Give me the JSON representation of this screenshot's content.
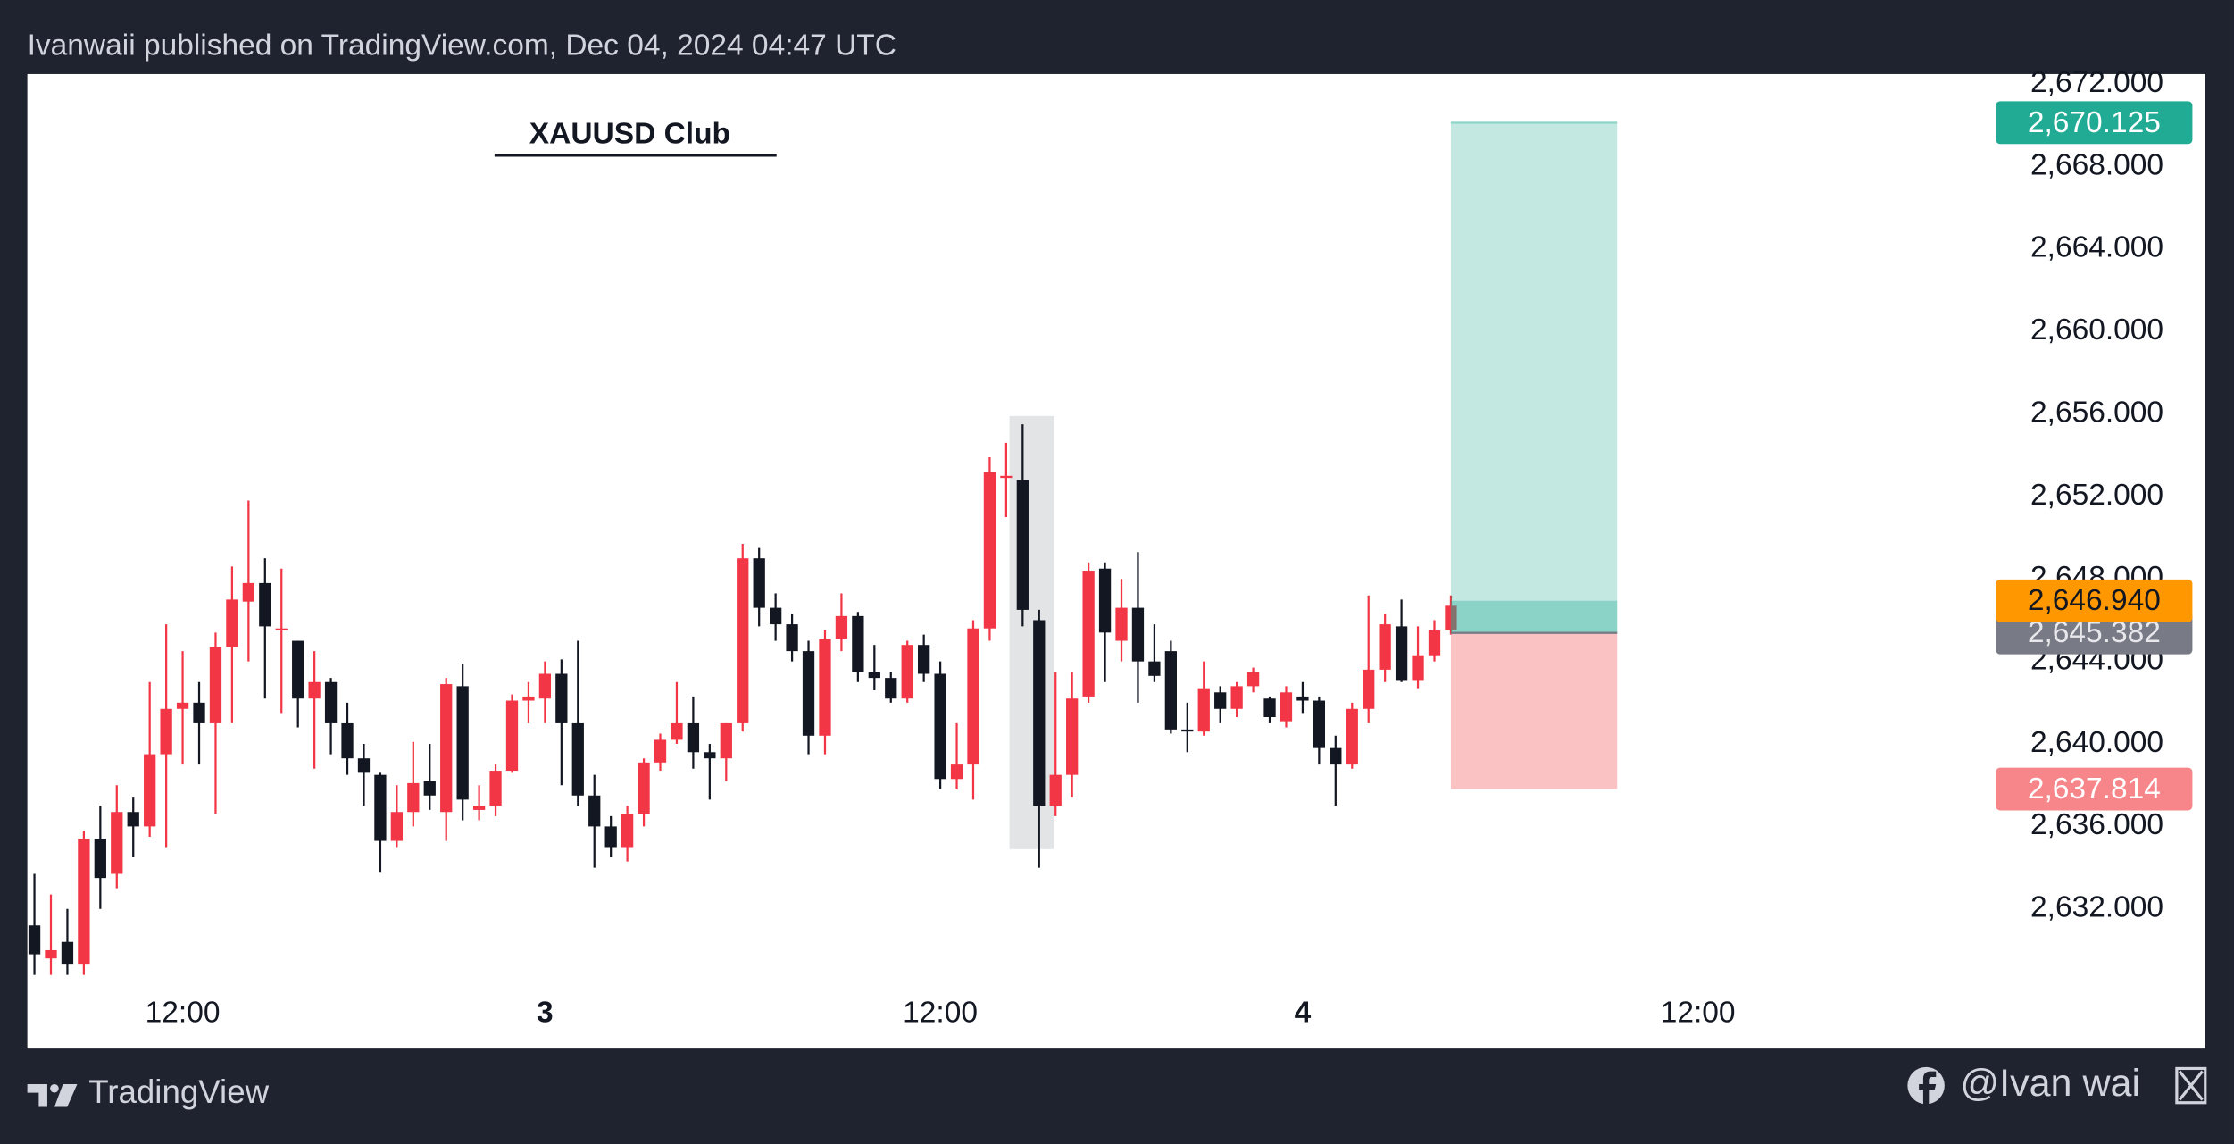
{
  "header": {
    "text": "Ivanwaii published on TradingView.com, Dec 04, 2024 04:47 UTC"
  },
  "footer": {
    "brand": "TradingView",
    "author": "@Ivan wai"
  },
  "chart_data": {
    "type": "candlestick",
    "annotation": "XAUUSD Club",
    "up_color": "#f23645",
    "down_color": "#131722",
    "categories": [
      null,
      null,
      null,
      null,
      null,
      null,
      null,
      null,
      null,
      null,
      null,
      null,
      null,
      null,
      null,
      null,
      null,
      null,
      null,
      null,
      null,
      null,
      null,
      null,
      null,
      null,
      null,
      null,
      null,
      null,
      null,
      null,
      null,
      null,
      null,
      null,
      null,
      null,
      null,
      null,
      null,
      null,
      null,
      null,
      null,
      null,
      null,
      null,
      null,
      null,
      null,
      null,
      null,
      null,
      null,
      null,
      null,
      null,
      null,
      null,
      null,
      null,
      null,
      null,
      null,
      null,
      null,
      null,
      null,
      null,
      null,
      null,
      null,
      null,
      null,
      null,
      null,
      null,
      null,
      null,
      null,
      null,
      null,
      null,
      null,
      null,
      null
    ],
    "open": [
      2631.2,
      2629.6,
      2630.4,
      2629.3,
      2635.4,
      2633.7,
      2636.7,
      2636,
      2639.5,
      2641.7,
      2642,
      2641,
      2644.7,
      2646.9,
      2647.8,
      2645.6,
      2645,
      2642.2,
      2643,
      2641,
      2639.3,
      2638.5,
      2635.3,
      2636.7,
      2638.2,
      2636.7,
      2642.8,
      2636.8,
      2637,
      2638.7,
      2642.1,
      2642.2,
      2643.4,
      2641,
      2637.5,
      2636,
      2635,
      2636.6,
      2639.1,
      2640.2,
      2641,
      2639.6,
      2639.3,
      2641,
      2649,
      2646.6,
      2645.8,
      2644.5,
      2640.4,
      2645.1,
      2646.2,
      2643.5,
      2643.2,
      2642.2,
      2644.8,
      2643.4,
      2638.3,
      2639,
      2645.6,
      2652.9,
      2652.8,
      2646,
      2637,
      2638.5,
      2642.3,
      2648.5,
      2645,
      2646.6,
      2644,
      2644.5,
      2640.7,
      2640.6,
      2642.5,
      2641.7,
      2642.8,
      2642.2,
      2641.1,
      2642.3,
      2642.1,
      2639.8,
      2639,
      2641.7,
      2643.6,
      2645.7,
      2643.1,
      2644.3,
      2645.5
    ],
    "high": [
      2633.7,
      2632.7,
      2632,
      2635.8,
      2637,
      2638,
      2637.4,
      2643,
      2645.8,
      2644.5,
      2643,
      2645.4,
      2648.6,
      2651.8,
      2649,
      2648.5,
      2645,
      2644.5,
      2643.2,
      2642,
      2640,
      2638.6,
      2638,
      2640.1,
      2640,
      2643.2,
      2643.9,
      2638,
      2639,
      2642.4,
      2643,
      2644,
      2644.1,
      2645,
      2638.5,
      2636.5,
      2637,
      2639.3,
      2640.5,
      2643,
      2642.3,
      2640,
      2641,
      2649.7,
      2649.5,
      2647.3,
      2646.3,
      2645,
      2645.5,
      2647.3,
      2646.4,
      2644.8,
      2643.5,
      2645,
      2645.3,
      2644,
      2641,
      2646,
      2653.9,
      2654.6,
      2655.5,
      2646.5,
      2643.5,
      2643.5,
      2648.8,
      2648.8,
      2648,
      2649.3,
      2645.8,
      2645,
      2642,
      2644,
      2642.8,
      2643,
      2643.7,
      2642.3,
      2642.8,
      2643,
      2642.3,
      2640.4,
      2642,
      2647.2,
      2646.3,
      2647,
      2645.7,
      2646,
      2647.2
    ],
    "low": [
      2628.8,
      2628.8,
      2628.8,
      2628.8,
      2632,
      2633,
      2634.5,
      2635.5,
      2635,
      2639,
      2639,
      2636.6,
      2641,
      2644,
      2642.2,
      2641.5,
      2640.8,
      2638.8,
      2639.5,
      2638.5,
      2637,
      2633.8,
      2635,
      2636,
      2636.8,
      2635.3,
      2636.3,
      2636.3,
      2636.5,
      2638.6,
      2641,
      2641,
      2638,
      2637,
      2634,
      2634.5,
      2634.3,
      2636,
      2638.7,
      2640,
      2638.8,
      2637.3,
      2638.2,
      2640.6,
      2645.7,
      2645,
      2644,
      2639.5,
      2639.5,
      2644.5,
      2643,
      2642.6,
      2642,
      2642,
      2643,
      2637.8,
      2637.8,
      2637.3,
      2645,
      2651,
      2645.7,
      2634,
      2636.5,
      2637.4,
      2642,
      2643,
      2644,
      2642,
      2643,
      2640.5,
      2639.6,
      2640.4,
      2641,
      2641.3,
      2642.5,
      2641,
      2640.8,
      2641.5,
      2639,
      2637,
      2638.8,
      2641,
      2643,
      2643,
      2642.7,
      2644,
      2645.3
    ],
    "close": [
      2629.8,
      2630,
      2629.3,
      2635.4,
      2633.5,
      2636.7,
      2636,
      2639.5,
      2641.7,
      2642,
      2641,
      2644.7,
      2647,
      2647.8,
      2645.7,
      2645.6,
      2642.2,
      2643,
      2641,
      2639.3,
      2638.6,
      2635.3,
      2636.7,
      2638.1,
      2637.5,
      2642.9,
      2637.3,
      2637,
      2638.7,
      2642.1,
      2642.3,
      2643.4,
      2641,
      2637.5,
      2636,
      2635,
      2636.6,
      2639.1,
      2640.2,
      2641,
      2639.6,
      2639.3,
      2641,
      2649,
      2646.6,
      2645.8,
      2644.5,
      2640.4,
      2645.1,
      2646.2,
      2643.5,
      2643.2,
      2642.2,
      2644.8,
      2643.4,
      2638.3,
      2639,
      2645.6,
      2653.2,
      2653,
      2646.5,
      2637,
      2638.5,
      2642.2,
      2648.4,
      2645.4,
      2646.6,
      2644,
      2643.3,
      2640.7,
      2640.6,
      2642.7,
      2641.7,
      2642.8,
      2643.5,
      2641.3,
      2642.5,
      2642.1,
      2639.8,
      2639,
      2641.7,
      2643.6,
      2645.8,
      2643.1,
      2644.3,
      2645.5,
      2646.7
    ],
    "xlim": [
      -0.43,
      131.8
    ],
    "xticks": [
      {
        "value": 9,
        "label": "12:00"
      },
      {
        "value": 31,
        "label": "3"
      },
      {
        "value": 55,
        "label": "12:00"
      },
      {
        "value": 77,
        "label": "4"
      },
      {
        "value": 101,
        "label": "12:00"
      }
    ],
    "ylim": [
      2625.23,
      2672.48
    ],
    "yticks": [
      {
        "value": 2632,
        "label": "2,632.000"
      },
      {
        "value": 2636,
        "label": "2,636.000"
      },
      {
        "value": 2640,
        "label": "2,640.000"
      },
      {
        "value": 2644,
        "label": "2,644.000"
      },
      {
        "value": 2648,
        "label": "2,648.000"
      },
      {
        "value": 2652,
        "label": "2,652.000"
      },
      {
        "value": 2656,
        "label": "2,656.000"
      },
      {
        "value": 2660,
        "label": "2,660.000"
      },
      {
        "value": 2664,
        "label": "2,664.000"
      },
      {
        "value": 2668,
        "label": "2,668.000"
      },
      {
        "value": 2672,
        "label": "2,672.000"
      }
    ],
    "highlight": {
      "x": [
        59.2,
        61.9
      ],
      "y": [
        2634.9,
        2655.9
      ],
      "color": "#e3e4e6"
    },
    "position": {
      "x": [
        86,
        96.1
      ],
      "target": {
        "value": 2670.125,
        "label": "2,670.125",
        "color": "#22ab94"
      },
      "entry": {
        "value": 2645.382,
        "label": "2,645.382",
        "color": "#787b86"
      },
      "stop": {
        "value": 2637.814,
        "label": "2,637.814",
        "color": "#f7868a"
      },
      "current": {
        "value": 2646.94,
        "label": "2,646.940",
        "color": "#ff9800"
      }
    }
  }
}
